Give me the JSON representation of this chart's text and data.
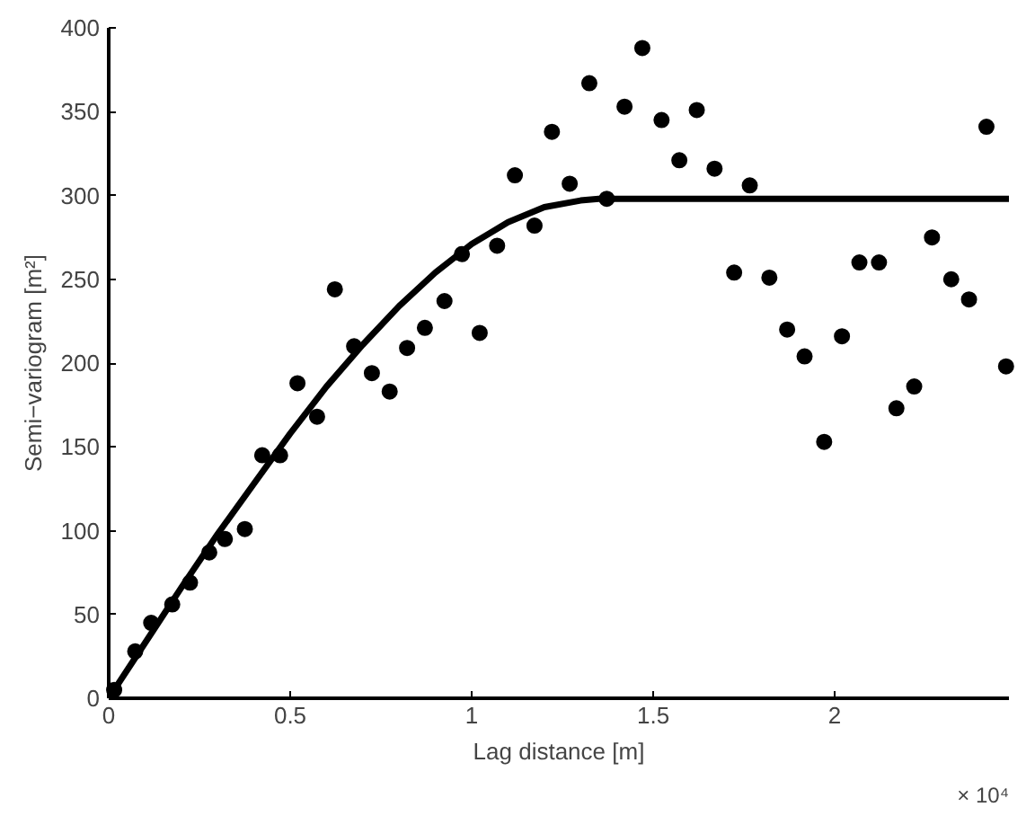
{
  "chart_data": {
    "type": "scatter",
    "xlabel": "Lag distance [m]",
    "ylabel": "Semi−variogram [m²]",
    "annotations": [
      "× 10⁴"
    ],
    "xlim": [
      0,
      2.48
    ],
    "ylim": [
      0,
      400
    ],
    "xticks": [
      0,
      0.5,
      1,
      1.5,
      2
    ],
    "yticks": [
      0,
      50,
      100,
      150,
      200,
      250,
      300,
      350,
      400
    ],
    "grid": false,
    "series": [
      {
        "marker": "circle",
        "color": "#000000",
        "x": [
          0.015,
          0.073,
          0.117,
          0.175,
          0.224,
          0.277,
          0.32,
          0.375,
          0.423,
          0.472,
          0.52,
          0.574,
          0.623,
          0.676,
          0.725,
          0.774,
          0.822,
          0.871,
          0.925,
          0.973,
          1.022,
          1.07,
          1.119,
          1.173,
          1.221,
          1.27,
          1.324,
          1.372,
          1.421,
          1.47,
          1.523,
          1.572,
          1.62,
          1.669,
          1.723,
          1.766,
          1.82,
          1.869,
          1.917,
          1.971,
          2.02,
          2.068,
          2.122,
          2.17,
          2.219,
          2.268,
          2.321,
          2.37,
          2.418,
          2.472
        ],
        "values": [
          5,
          28,
          45,
          56,
          69,
          87,
          95,
          101,
          145,
          145,
          188,
          168,
          244,
          210,
          194,
          183,
          209,
          221,
          237,
          265,
          218,
          270,
          312,
          282,
          338,
          307,
          367,
          298,
          353,
          388,
          345,
          321,
          351,
          316,
          254,
          306,
          251,
          220,
          204,
          153,
          216,
          260,
          260,
          173,
          186,
          275,
          250,
          238,
          341,
          198
        ]
      },
      {
        "type": "line",
        "color": "#000000",
        "line_style": "solid",
        "x": [
          0,
          0.1,
          0.2,
          0.3,
          0.4,
          0.5,
          0.6,
          0.7,
          0.8,
          0.9,
          1.0,
          1.1,
          1.2,
          1.3,
          1.35,
          2.48
        ],
        "values": [
          0,
          33,
          66,
          98,
          128,
          158,
          186,
          211,
          234,
          254,
          271,
          284,
          293,
          297,
          298,
          298
        ]
      }
    ]
  }
}
